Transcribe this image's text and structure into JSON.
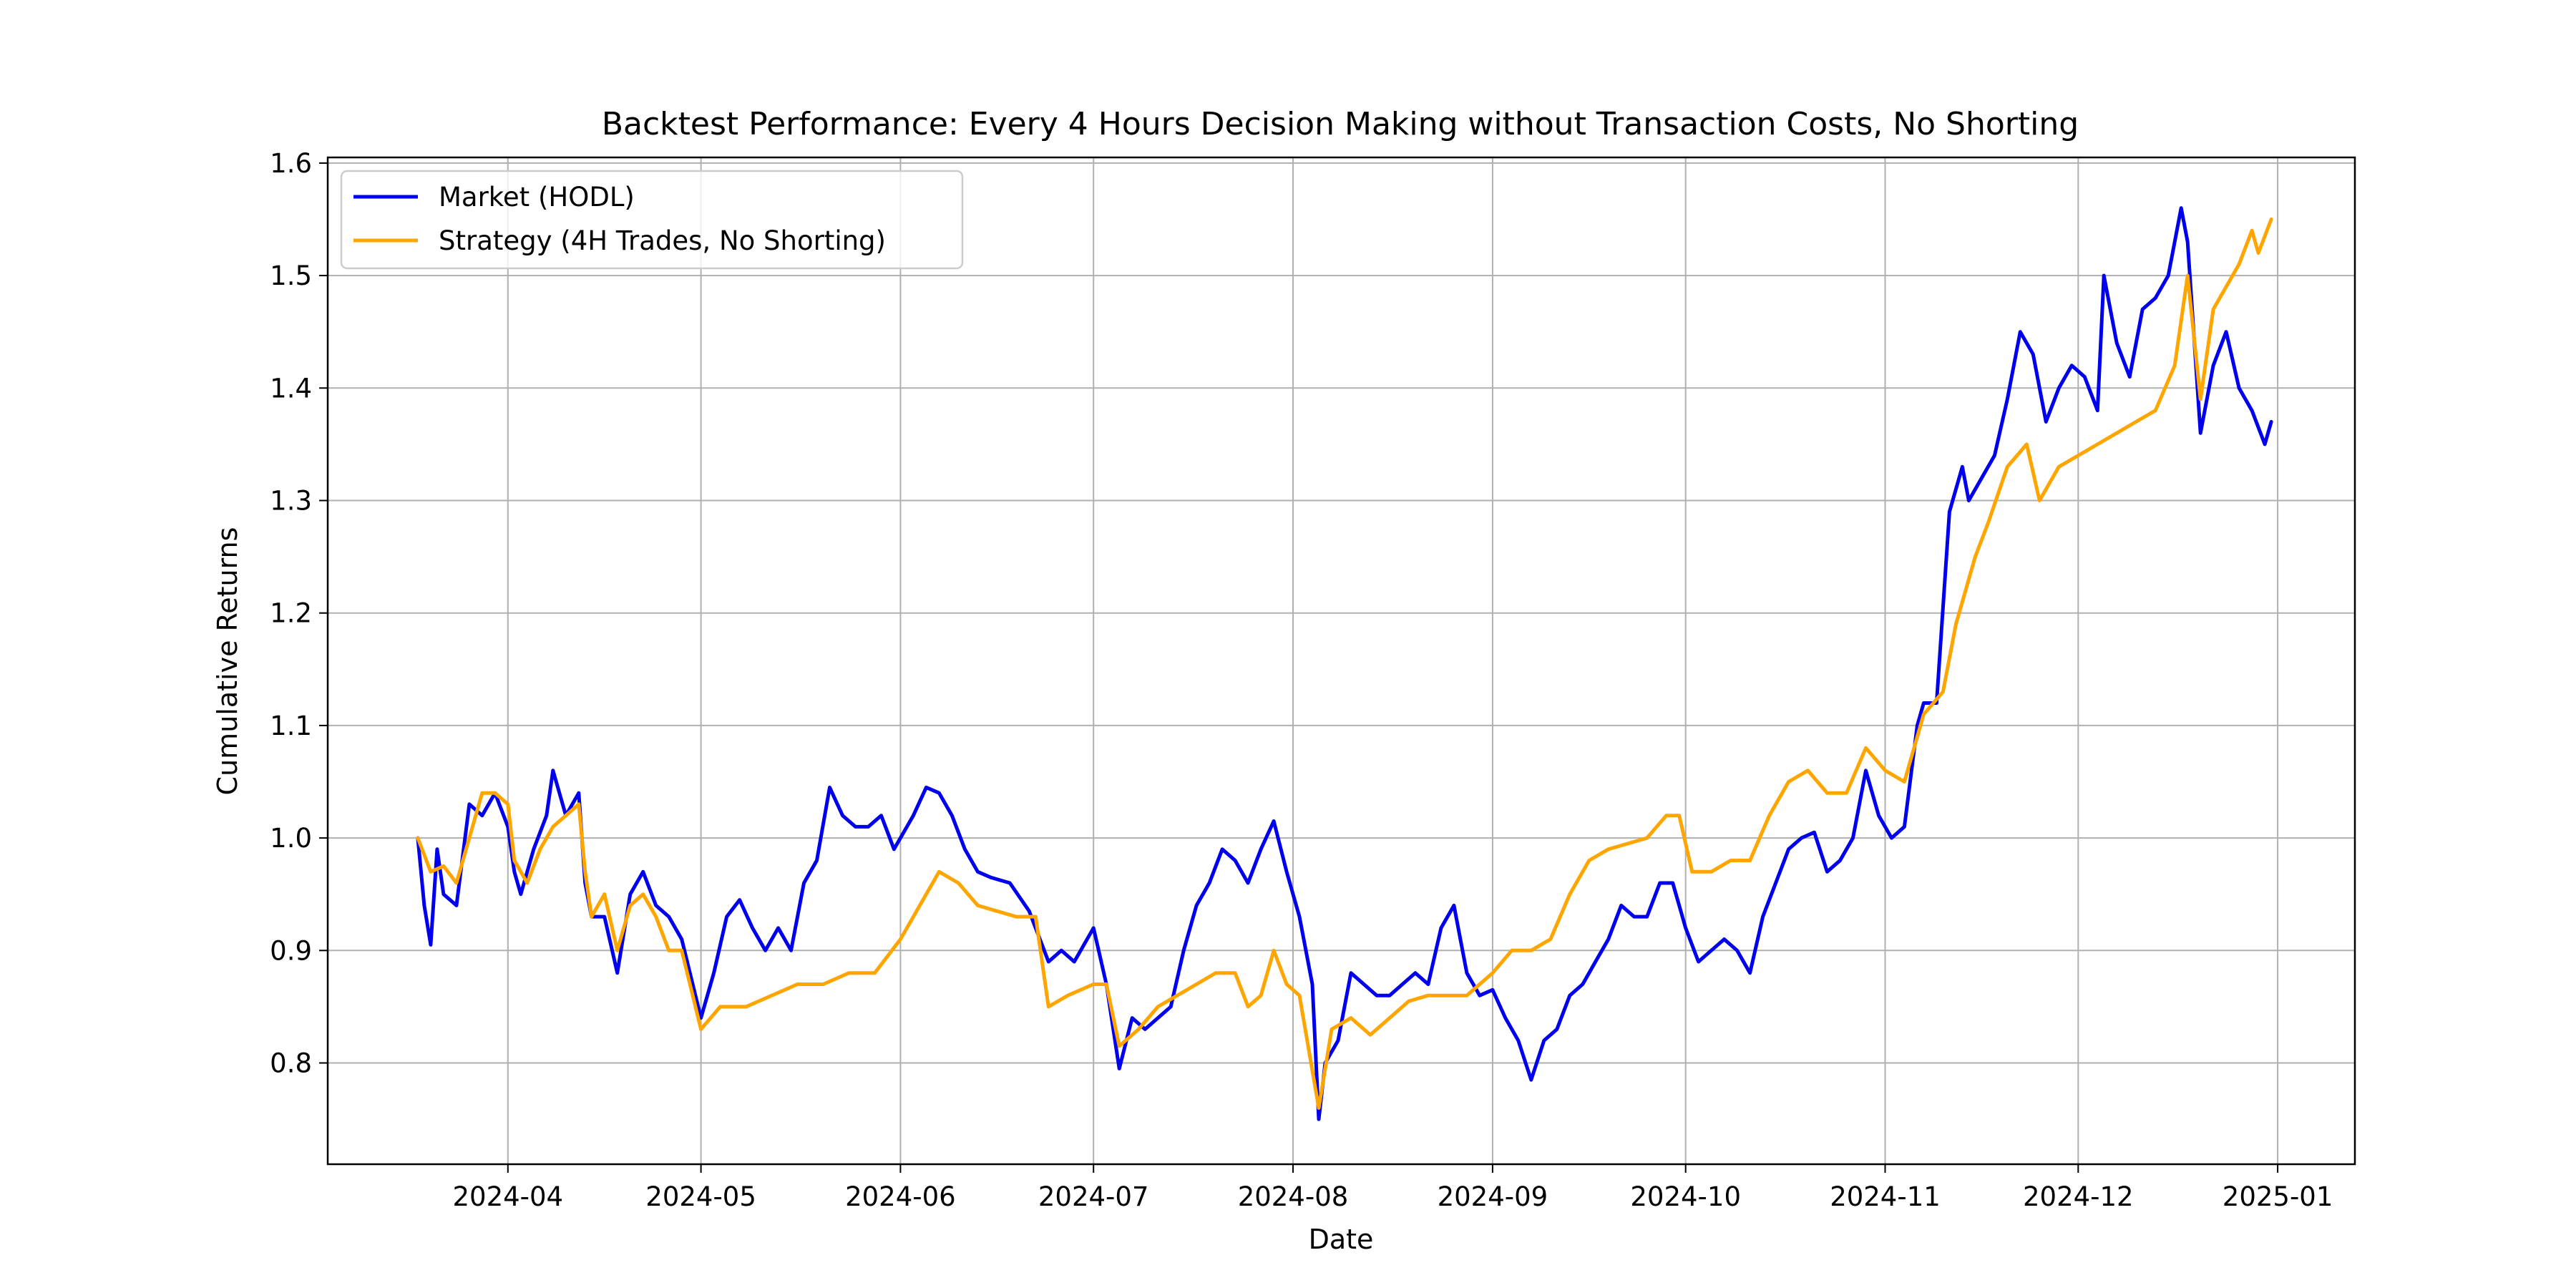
{
  "chart_data": {
    "type": "line",
    "title": "Backtest Performance: Every 4 Hours Decision Making without Transaction Costs, No Shorting",
    "xlabel": "Date",
    "ylabel": "Cumulative Returns",
    "x_tick_labels": [
      "2024-04",
      "2024-05",
      "2024-06",
      "2024-07",
      "2024-08",
      "2024-09",
      "2024-10",
      "2024-11",
      "2024-12",
      "2025-01"
    ],
    "x_tick_dates": [
      "2024-04-01",
      "2024-05-01",
      "2024-06-01",
      "2024-07-01",
      "2024-08-01",
      "2024-09-01",
      "2024-10-01",
      "2024-11-01",
      "2024-12-01",
      "2025-01-01"
    ],
    "y_tick_labels": [
      "0.8",
      "0.9",
      "1.0",
      "1.1",
      "1.2",
      "1.3",
      "1.4",
      "1.5",
      "1.6"
    ],
    "y_ticks": [
      0.8,
      0.9,
      1.0,
      1.1,
      1.2,
      1.3,
      1.4,
      1.5,
      1.6
    ],
    "xlim": [
      "2024-03-04",
      "2025-01-13"
    ],
    "ylim": [
      0.71,
      1.605
    ],
    "grid": true,
    "legend_position": "top-left",
    "series": [
      {
        "name": "Market (HODL)",
        "color": "#0000ee",
        "points": [
          [
            "2024-03-18",
            1.0
          ],
          [
            "2024-03-19",
            0.94
          ],
          [
            "2024-03-20",
            0.905
          ],
          [
            "2024-03-21",
            0.99
          ],
          [
            "2024-03-22",
            0.95
          ],
          [
            "2024-03-24",
            0.94
          ],
          [
            "2024-03-26",
            1.03
          ],
          [
            "2024-03-28",
            1.02
          ],
          [
            "2024-03-30",
            1.04
          ],
          [
            "2024-04-01",
            1.01
          ],
          [
            "2024-04-02",
            0.97
          ],
          [
            "2024-04-03",
            0.95
          ],
          [
            "2024-04-05",
            0.99
          ],
          [
            "2024-04-07",
            1.02
          ],
          [
            "2024-04-08",
            1.06
          ],
          [
            "2024-04-10",
            1.02
          ],
          [
            "2024-04-12",
            1.04
          ],
          [
            "2024-04-13",
            0.96
          ],
          [
            "2024-04-14",
            0.93
          ],
          [
            "2024-04-16",
            0.93
          ],
          [
            "2024-04-18",
            0.88
          ],
          [
            "2024-04-20",
            0.95
          ],
          [
            "2024-04-22",
            0.97
          ],
          [
            "2024-04-24",
            0.94
          ],
          [
            "2024-04-26",
            0.93
          ],
          [
            "2024-04-28",
            0.91
          ],
          [
            "2024-05-01",
            0.84
          ],
          [
            "2024-05-03",
            0.88
          ],
          [
            "2024-05-05",
            0.93
          ],
          [
            "2024-05-07",
            0.945
          ],
          [
            "2024-05-09",
            0.92
          ],
          [
            "2024-05-11",
            0.9
          ],
          [
            "2024-05-13",
            0.92
          ],
          [
            "2024-05-15",
            0.9
          ],
          [
            "2024-05-17",
            0.96
          ],
          [
            "2024-05-19",
            0.98
          ],
          [
            "2024-05-21",
            1.045
          ],
          [
            "2024-05-23",
            1.02
          ],
          [
            "2024-05-25",
            1.01
          ],
          [
            "2024-05-27",
            1.01
          ],
          [
            "2024-05-29",
            1.02
          ],
          [
            "2024-05-31",
            0.99
          ],
          [
            "2024-06-03",
            1.02
          ],
          [
            "2024-06-05",
            1.045
          ],
          [
            "2024-06-07",
            1.04
          ],
          [
            "2024-06-09",
            1.02
          ],
          [
            "2024-06-11",
            0.99
          ],
          [
            "2024-06-13",
            0.97
          ],
          [
            "2024-06-15",
            0.965
          ],
          [
            "2024-06-18",
            0.96
          ],
          [
            "2024-06-21",
            0.935
          ],
          [
            "2024-06-24",
            0.89
          ],
          [
            "2024-06-26",
            0.9
          ],
          [
            "2024-06-28",
            0.89
          ],
          [
            "2024-07-01",
            0.92
          ],
          [
            "2024-07-03",
            0.87
          ],
          [
            "2024-07-05",
            0.795
          ],
          [
            "2024-07-07",
            0.84
          ],
          [
            "2024-07-09",
            0.83
          ],
          [
            "2024-07-11",
            0.84
          ],
          [
            "2024-07-13",
            0.85
          ],
          [
            "2024-07-15",
            0.9
          ],
          [
            "2024-07-17",
            0.94
          ],
          [
            "2024-07-19",
            0.96
          ],
          [
            "2024-07-21",
            0.99
          ],
          [
            "2024-07-23",
            0.98
          ],
          [
            "2024-07-25",
            0.96
          ],
          [
            "2024-07-27",
            0.99
          ],
          [
            "2024-07-29",
            1.015
          ],
          [
            "2024-07-31",
            0.97
          ],
          [
            "2024-08-02",
            0.93
          ],
          [
            "2024-08-04",
            0.87
          ],
          [
            "2024-08-05",
            0.75
          ],
          [
            "2024-08-06",
            0.8
          ],
          [
            "2024-08-08",
            0.82
          ],
          [
            "2024-08-10",
            0.88
          ],
          [
            "2024-08-12",
            0.87
          ],
          [
            "2024-08-14",
            0.86
          ],
          [
            "2024-08-16",
            0.86
          ],
          [
            "2024-08-18",
            0.87
          ],
          [
            "2024-08-20",
            0.88
          ],
          [
            "2024-08-22",
            0.87
          ],
          [
            "2024-08-24",
            0.92
          ],
          [
            "2024-08-26",
            0.94
          ],
          [
            "2024-08-28",
            0.88
          ],
          [
            "2024-08-30",
            0.86
          ],
          [
            "2024-09-01",
            0.865
          ],
          [
            "2024-09-03",
            0.84
          ],
          [
            "2024-09-05",
            0.82
          ],
          [
            "2024-09-07",
            0.785
          ],
          [
            "2024-09-09",
            0.82
          ],
          [
            "2024-09-11",
            0.83
          ],
          [
            "2024-09-13",
            0.86
          ],
          [
            "2024-09-15",
            0.87
          ],
          [
            "2024-09-17",
            0.89
          ],
          [
            "2024-09-19",
            0.91
          ],
          [
            "2024-09-21",
            0.94
          ],
          [
            "2024-09-23",
            0.93
          ],
          [
            "2024-09-25",
            0.93
          ],
          [
            "2024-09-27",
            0.96
          ],
          [
            "2024-09-29",
            0.96
          ],
          [
            "2024-10-01",
            0.92
          ],
          [
            "2024-10-03",
            0.89
          ],
          [
            "2024-10-05",
            0.9
          ],
          [
            "2024-10-07",
            0.91
          ],
          [
            "2024-10-09",
            0.9
          ],
          [
            "2024-10-11",
            0.88
          ],
          [
            "2024-10-13",
            0.93
          ],
          [
            "2024-10-15",
            0.96
          ],
          [
            "2024-10-17",
            0.99
          ],
          [
            "2024-10-19",
            1.0
          ],
          [
            "2024-10-21",
            1.005
          ],
          [
            "2024-10-23",
            0.97
          ],
          [
            "2024-10-25",
            0.98
          ],
          [
            "2024-10-27",
            1.0
          ],
          [
            "2024-10-29",
            1.06
          ],
          [
            "2024-10-31",
            1.02
          ],
          [
            "2024-11-02",
            1.0
          ],
          [
            "2024-11-04",
            1.01
          ],
          [
            "2024-11-06",
            1.1
          ],
          [
            "2024-11-07",
            1.12
          ],
          [
            "2024-11-09",
            1.12
          ],
          [
            "2024-11-11",
            1.29
          ],
          [
            "2024-11-13",
            1.33
          ],
          [
            "2024-11-14",
            1.3
          ],
          [
            "2024-11-16",
            1.32
          ],
          [
            "2024-11-18",
            1.34
          ],
          [
            "2024-11-20",
            1.39
          ],
          [
            "2024-11-22",
            1.45
          ],
          [
            "2024-11-24",
            1.43
          ],
          [
            "2024-11-26",
            1.37
          ],
          [
            "2024-11-28",
            1.4
          ],
          [
            "2024-11-30",
            1.42
          ],
          [
            "2024-12-02",
            1.41
          ],
          [
            "2024-12-04",
            1.38
          ],
          [
            "2024-12-05",
            1.5
          ],
          [
            "2024-12-07",
            1.44
          ],
          [
            "2024-12-09",
            1.41
          ],
          [
            "2024-12-11",
            1.47
          ],
          [
            "2024-12-13",
            1.48
          ],
          [
            "2024-12-15",
            1.5
          ],
          [
            "2024-12-17",
            1.56
          ],
          [
            "2024-12-18",
            1.53
          ],
          [
            "2024-12-20",
            1.36
          ],
          [
            "2024-12-22",
            1.42
          ],
          [
            "2024-12-24",
            1.45
          ],
          [
            "2024-12-26",
            1.4
          ],
          [
            "2024-12-28",
            1.38
          ],
          [
            "2024-12-30",
            1.35
          ],
          [
            "2024-12-31",
            1.37
          ]
        ]
      },
      {
        "name": "Strategy (4H Trades, No Shorting)",
        "color": "#ffa500",
        "points": [
          [
            "2024-03-18",
            1.0
          ],
          [
            "2024-03-20",
            0.97
          ],
          [
            "2024-03-22",
            0.975
          ],
          [
            "2024-03-24",
            0.96
          ],
          [
            "2024-03-26",
            1.0
          ],
          [
            "2024-03-28",
            1.04
          ],
          [
            "2024-03-30",
            1.04
          ],
          [
            "2024-04-01",
            1.03
          ],
          [
            "2024-04-02",
            0.98
          ],
          [
            "2024-04-04",
            0.96
          ],
          [
            "2024-04-06",
            0.99
          ],
          [
            "2024-04-08",
            1.01
          ],
          [
            "2024-04-10",
            1.02
          ],
          [
            "2024-04-12",
            1.03
          ],
          [
            "2024-04-13",
            0.97
          ],
          [
            "2024-04-14",
            0.93
          ],
          [
            "2024-04-16",
            0.95
          ],
          [
            "2024-04-18",
            0.9
          ],
          [
            "2024-04-20",
            0.94
          ],
          [
            "2024-04-22",
            0.95
          ],
          [
            "2024-04-24",
            0.93
          ],
          [
            "2024-04-26",
            0.9
          ],
          [
            "2024-04-28",
            0.9
          ],
          [
            "2024-05-01",
            0.83
          ],
          [
            "2024-05-04",
            0.85
          ],
          [
            "2024-05-08",
            0.85
          ],
          [
            "2024-05-12",
            0.86
          ],
          [
            "2024-05-16",
            0.87
          ],
          [
            "2024-05-20",
            0.87
          ],
          [
            "2024-05-24",
            0.88
          ],
          [
            "2024-05-28",
            0.88
          ],
          [
            "2024-06-01",
            0.91
          ],
          [
            "2024-06-04",
            0.94
          ],
          [
            "2024-06-07",
            0.97
          ],
          [
            "2024-06-10",
            0.96
          ],
          [
            "2024-06-13",
            0.94
          ],
          [
            "2024-06-16",
            0.935
          ],
          [
            "2024-06-19",
            0.93
          ],
          [
            "2024-06-22",
            0.93
          ],
          [
            "2024-06-24",
            0.85
          ],
          [
            "2024-06-27",
            0.86
          ],
          [
            "2024-07-01",
            0.87
          ],
          [
            "2024-07-03",
            0.87
          ],
          [
            "2024-07-05",
            0.815
          ],
          [
            "2024-07-08",
            0.83
          ],
          [
            "2024-07-11",
            0.85
          ],
          [
            "2024-07-14",
            0.86
          ],
          [
            "2024-07-17",
            0.87
          ],
          [
            "2024-07-20",
            0.88
          ],
          [
            "2024-07-23",
            0.88
          ],
          [
            "2024-07-25",
            0.85
          ],
          [
            "2024-07-27",
            0.86
          ],
          [
            "2024-07-29",
            0.9
          ],
          [
            "2024-07-31",
            0.87
          ],
          [
            "2024-08-02",
            0.86
          ],
          [
            "2024-08-05",
            0.76
          ],
          [
            "2024-08-07",
            0.83
          ],
          [
            "2024-08-10",
            0.84
          ],
          [
            "2024-08-13",
            0.825
          ],
          [
            "2024-08-16",
            0.84
          ],
          [
            "2024-08-19",
            0.855
          ],
          [
            "2024-08-22",
            0.86
          ],
          [
            "2024-08-25",
            0.86
          ],
          [
            "2024-08-28",
            0.86
          ],
          [
            "2024-09-01",
            0.88
          ],
          [
            "2024-09-04",
            0.9
          ],
          [
            "2024-09-07",
            0.9
          ],
          [
            "2024-09-10",
            0.91
          ],
          [
            "2024-09-13",
            0.95
          ],
          [
            "2024-09-16",
            0.98
          ],
          [
            "2024-09-19",
            0.99
          ],
          [
            "2024-09-22",
            0.995
          ],
          [
            "2024-09-25",
            1.0
          ],
          [
            "2024-09-28",
            1.02
          ],
          [
            "2024-09-30",
            1.02
          ],
          [
            "2024-10-02",
            0.97
          ],
          [
            "2024-10-05",
            0.97
          ],
          [
            "2024-10-08",
            0.98
          ],
          [
            "2024-10-11",
            0.98
          ],
          [
            "2024-10-14",
            1.02
          ],
          [
            "2024-10-17",
            1.05
          ],
          [
            "2024-10-20",
            1.06
          ],
          [
            "2024-10-23",
            1.04
          ],
          [
            "2024-10-26",
            1.04
          ],
          [
            "2024-10-29",
            1.08
          ],
          [
            "2024-11-01",
            1.06
          ],
          [
            "2024-11-04",
            1.05
          ],
          [
            "2024-11-07",
            1.11
          ],
          [
            "2024-11-10",
            1.13
          ],
          [
            "2024-11-12",
            1.19
          ],
          [
            "2024-11-15",
            1.25
          ],
          [
            "2024-11-17",
            1.28
          ],
          [
            "2024-11-20",
            1.33
          ],
          [
            "2024-11-23",
            1.35
          ],
          [
            "2024-11-25",
            1.3
          ],
          [
            "2024-11-28",
            1.33
          ],
          [
            "2024-12-01",
            1.34
          ],
          [
            "2024-12-04",
            1.35
          ],
          [
            "2024-12-07",
            1.36
          ],
          [
            "2024-12-10",
            1.37
          ],
          [
            "2024-12-13",
            1.38
          ],
          [
            "2024-12-16",
            1.42
          ],
          [
            "2024-12-18",
            1.5
          ],
          [
            "2024-12-20",
            1.39
          ],
          [
            "2024-12-22",
            1.47
          ],
          [
            "2024-12-24",
            1.49
          ],
          [
            "2024-12-26",
            1.51
          ],
          [
            "2024-12-28",
            1.54
          ],
          [
            "2024-12-29",
            1.52
          ],
          [
            "2024-12-31",
            1.55
          ]
        ]
      }
    ]
  }
}
